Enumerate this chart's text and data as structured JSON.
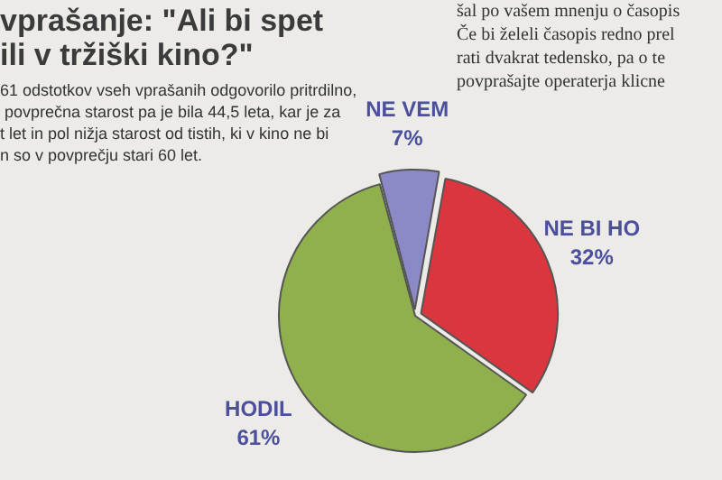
{
  "chart_data": {
    "type": "pie",
    "title": "vprašanje: \"Ali bi spet\nili v tržiški kino?\"",
    "categories": [
      "NE VEM",
      "NE BI HO",
      "HODIL"
    ],
    "values": [
      7,
      32,
      61
    ],
    "colors": [
      "#8c8ac6",
      "#d9363e",
      "#8fb04c"
    ],
    "value_labels": [
      "7%",
      "32%",
      "61%"
    ],
    "annotations": [
      "61 odstotkov vseh vprašanih odgovorilo pritrdilno,\n povprečna starost pa je bila 44,5 leta, kar je za\nt let in pol nižja starost od tistih, ki v kino ne bi\nn so v povprečju stari 60 let.",
      "šal po vašem mnenju o časopis\nČe bi želeli časopis redno prel\nrati dvakrat tedensko, pa o te\npovprašajte operaterja klicne"
    ],
    "legend": false
  }
}
